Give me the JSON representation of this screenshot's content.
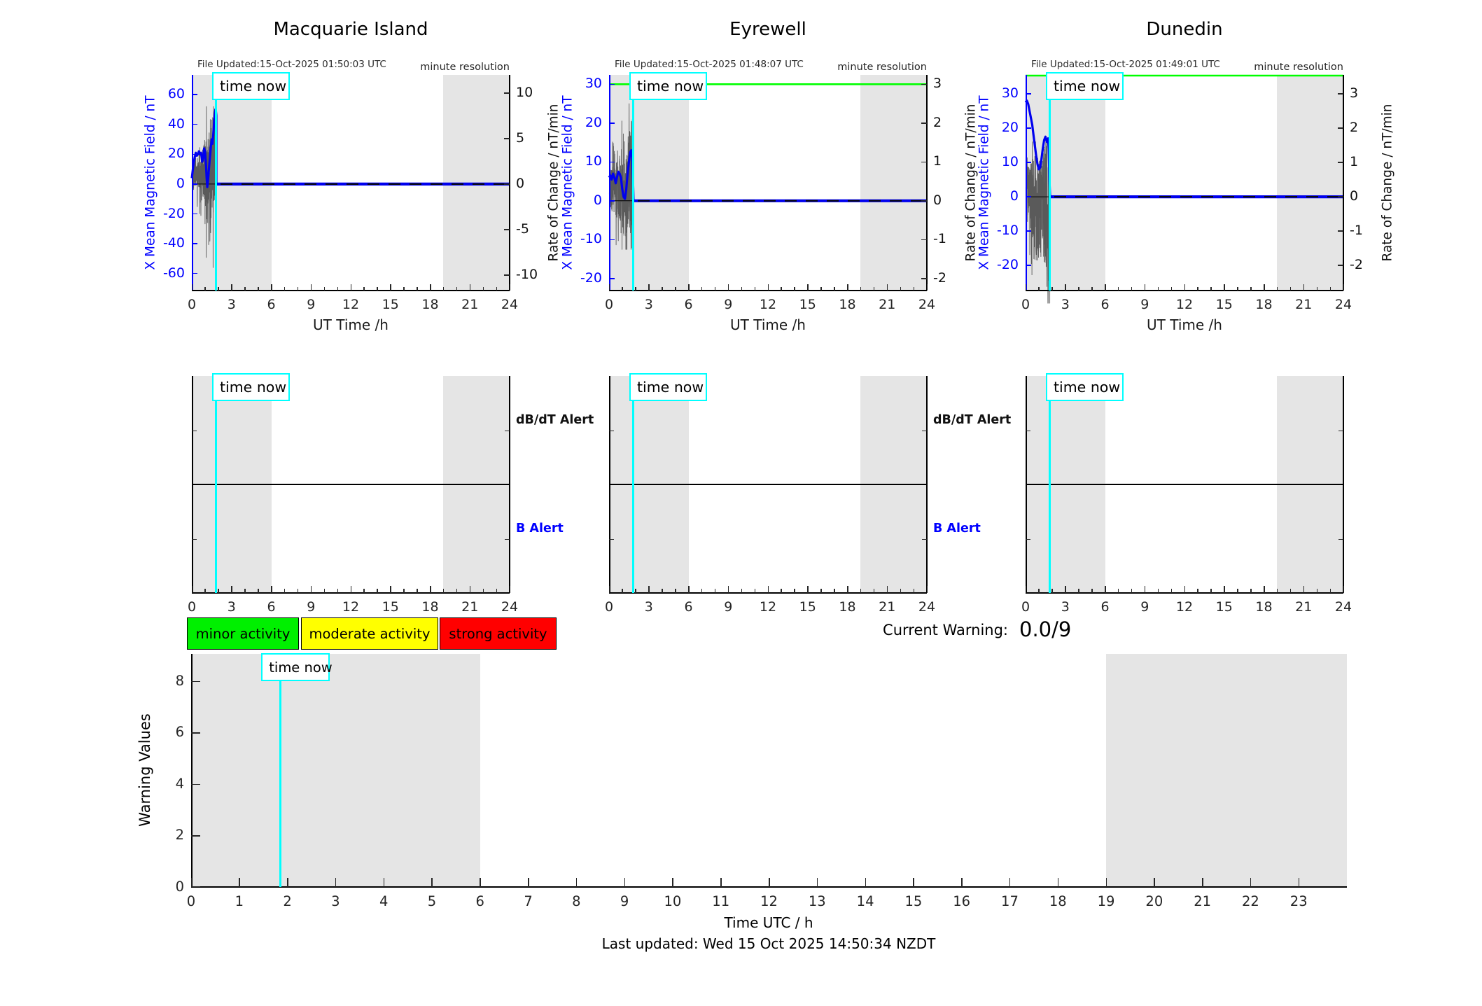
{
  "chart_data": {
    "type": "line",
    "time_now_label": "time now",
    "time_now_hour": 1.85,
    "gray_bands": [
      [
        0,
        6
      ],
      [
        19,
        24
      ]
    ],
    "stations": [
      {
        "title": "Macquarie Island",
        "file_updated": "File Updated:15-Oct-2025 01:50:03 UTC",
        "resolution_note": "minute resolution",
        "y_left_label": "X Mean Magnetic Field / nT",
        "y_right_label": "Rate of Change / nT/min",
        "x_label": "UT Time /h",
        "x_ticks": [
          0,
          3,
          6,
          9,
          12,
          15,
          18,
          21,
          24
        ],
        "left_ticks": [
          60,
          40,
          20,
          0,
          -20,
          -40,
          -60
        ],
        "right_ticks": [
          10,
          5,
          0,
          -5,
          -10
        ],
        "left_range": [
          -71.4,
          73.2
        ],
        "right_range": [
          -11.7,
          12.0
        ],
        "green_threshold": null,
        "line_nT": [
          [
            0,
            4
          ],
          [
            0.07,
            9
          ],
          [
            0.14,
            14
          ],
          [
            0.22,
            18
          ],
          [
            0.3,
            21
          ],
          [
            0.38,
            19
          ],
          [
            0.46,
            20
          ],
          [
            0.54,
            22
          ],
          [
            0.62,
            20
          ],
          [
            0.7,
            21
          ],
          [
            0.78,
            15
          ],
          [
            0.85,
            17
          ],
          [
            0.93,
            24
          ],
          [
            1.0,
            22
          ],
          [
            1.06,
            14
          ],
          [
            1.12,
            4
          ],
          [
            1.17,
            -2
          ],
          [
            1.23,
            3
          ],
          [
            1.3,
            11
          ],
          [
            1.37,
            18
          ],
          [
            1.44,
            25
          ],
          [
            1.5,
            30
          ],
          [
            1.56,
            27
          ],
          [
            1.62,
            33
          ],
          [
            1.68,
            41
          ],
          [
            1.73,
            46
          ],
          [
            1.78,
            50
          ],
          [
            1.82,
            49
          ],
          [
            1.85,
            46
          ],
          [
            1.85,
            0
          ],
          [
            24,
            0
          ]
        ],
        "noise": {
          "seed": 11,
          "center_mul": 0.4,
          "center_off": 0,
          "clamp": [
            -56,
            52
          ],
          "amp": [
            [
              0,
              6
            ],
            [
              0.5,
              12
            ],
            [
              0.9,
              18
            ],
            [
              1.2,
              30
            ],
            [
              1.5,
              38
            ],
            [
              1.85,
              30
            ]
          ]
        }
      },
      {
        "title": "Eyrewell",
        "file_updated": "File Updated:15-Oct-2025 01:48:07 UTC",
        "resolution_note": "minute resolution",
        "y_left_label": "X Mean Magnetic Field / nT",
        "y_right_label": "Rate of Change / nT/min",
        "x_label": "UT Time /h",
        "x_ticks": [
          0,
          3,
          6,
          9,
          12,
          15,
          18,
          21,
          24
        ],
        "left_ticks": [
          30,
          20,
          10,
          0,
          -10,
          -20
        ],
        "right_ticks": [
          3,
          2,
          1,
          0,
          -1,
          -2
        ],
        "left_range": [
          -23.1,
          32.4
        ],
        "right_range": [
          -2.31,
          3.24
        ],
        "green_threshold": 30,
        "line_nT": [
          [
            0,
            6
          ],
          [
            0.1,
            6.5
          ],
          [
            0.2,
            5.5
          ],
          [
            0.3,
            7
          ],
          [
            0.4,
            6
          ],
          [
            0.5,
            4.5
          ],
          [
            0.6,
            6
          ],
          [
            0.7,
            7.5
          ],
          [
            0.8,
            7
          ],
          [
            0.9,
            6
          ],
          [
            1.0,
            3
          ],
          [
            1.1,
            1
          ],
          [
            1.2,
            0.5
          ],
          [
            1.3,
            3
          ],
          [
            1.4,
            7
          ],
          [
            1.5,
            10
          ],
          [
            1.6,
            12.5
          ],
          [
            1.68,
            13
          ],
          [
            1.75,
            11
          ],
          [
            1.8,
            6
          ],
          [
            1.85,
            0
          ],
          [
            24,
            0
          ]
        ],
        "noise": {
          "seed": 23,
          "center_mul": 0.5,
          "center_off": 0,
          "clamp": [
            -12.5,
            25
          ],
          "amp": [
            [
              0,
              5
            ],
            [
              0.5,
              7
            ],
            [
              1.0,
              9
            ],
            [
              1.4,
              12
            ],
            [
              1.7,
              16
            ],
            [
              1.85,
              12
            ]
          ]
        }
      },
      {
        "title": "Dunedin",
        "file_updated": "File Updated:15-Oct-2025 01:49:01 UTC",
        "resolution_note": "minute resolution",
        "y_left_label": "X Mean Magnetic Field / nT",
        "y_right_label": "Rate of Change / nT/min",
        "x_label": "UT Time /h",
        "x_ticks": [
          0,
          3,
          6,
          9,
          12,
          15,
          18,
          21,
          24
        ],
        "left_ticks": [
          30,
          20,
          10,
          0,
          -10,
          -20
        ],
        "right_ticks": [
          3,
          2,
          1,
          0,
          -1,
          -2
        ],
        "left_range": [
          -27.3,
          35.5
        ],
        "right_range": [
          -2.73,
          3.55
        ],
        "green_threshold": 35.3,
        "line_nT": [
          [
            0,
            27.5
          ],
          [
            0.1,
            28
          ],
          [
            0.2,
            27
          ],
          [
            0.3,
            25
          ],
          [
            0.4,
            23
          ],
          [
            0.5,
            21
          ],
          [
            0.6,
            18
          ],
          [
            0.7,
            15
          ],
          [
            0.8,
            12
          ],
          [
            0.9,
            9.5
          ],
          [
            1.0,
            8
          ],
          [
            1.1,
            8.5
          ],
          [
            1.2,
            11
          ],
          [
            1.3,
            14
          ],
          [
            1.4,
            16.5
          ],
          [
            1.5,
            17.5
          ],
          [
            1.6,
            16
          ],
          [
            1.7,
            17
          ],
          [
            1.75,
            14
          ],
          [
            1.8,
            5
          ],
          [
            1.85,
            0
          ],
          [
            24,
            0
          ]
        ],
        "noise": {
          "seed": 37,
          "center_mul": 0.25,
          "center_off": -6,
          "clamp": [
            -31,
            16
          ],
          "amp": [
            [
              0,
              7
            ],
            [
              0.4,
              10
            ],
            [
              0.8,
              16
            ],
            [
              1.2,
              14
            ],
            [
              1.6,
              20
            ],
            [
              1.85,
              24
            ]
          ]
        }
      }
    ],
    "alert_panels": {
      "x_ticks": [
        0,
        3,
        6,
        9,
        12,
        15,
        18,
        21,
        24
      ],
      "dbdt_label": "dB/dT Alert",
      "b_label": "B Alert",
      "side_labels_on_panels": [
        0,
        1
      ]
    },
    "legend": [
      {
        "label": "minor activity",
        "color": "#00F000"
      },
      {
        "label": "moderate activity",
        "color": "#FFFF00"
      },
      {
        "label": "strong activity",
        "color": "#FF0000"
      }
    ],
    "warning": {
      "label": "Current Warning:",
      "value": "0.0/9"
    },
    "bottom": {
      "y_label": "Warning Values",
      "x_label": "Time UTC / h",
      "y_ticks": [
        0,
        2,
        4,
        6,
        8
      ],
      "y_max": 9.05,
      "x_ticks": [
        0,
        1,
        2,
        3,
        4,
        5,
        6,
        7,
        8,
        9,
        10,
        11,
        12,
        13,
        14,
        15,
        16,
        17,
        18,
        19,
        20,
        21,
        22,
        23
      ],
      "gray_bands": [
        [
          0,
          6
        ],
        [
          19,
          24
        ]
      ],
      "time_now_hour": 1.85
    },
    "footer": {
      "last_updated": "Last updated: Wed 15 Oct 2025 14:50:34 NZDT"
    },
    "colors": {
      "axis_blue": "#0000FF",
      "signal_blue": "#0000EE",
      "noise_gray": "#5a5a5a",
      "threshold_green": "#00FF00",
      "cyan": "#00FFFF",
      "band_gray": "#E5E5E5",
      "tick_text": "#262626",
      "alert_b_blue": "#0000FF"
    }
  }
}
